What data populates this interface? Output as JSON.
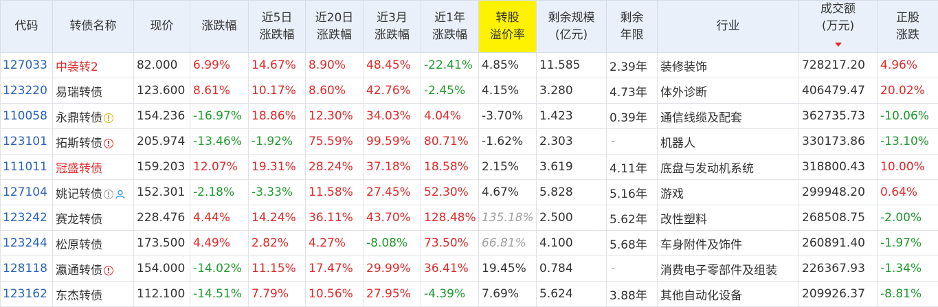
{
  "headers": [
    {
      "lines": [
        "代码"
      ]
    },
    {
      "lines": [
        "转债名称"
      ]
    },
    {
      "lines": [
        "现价"
      ]
    },
    {
      "lines": [
        "涨跌幅"
      ]
    },
    {
      "lines": [
        "近5日",
        "涨跌幅"
      ]
    },
    {
      "lines": [
        "近20日",
        "涨跌幅"
      ]
    },
    {
      "lines": [
        "近3月",
        "涨跌幅"
      ]
    },
    {
      "lines": [
        "近1年",
        "涨跌幅"
      ]
    },
    {
      "lines": [
        "转股",
        "溢价率"
      ]
    },
    {
      "lines": [
        "剩余规模",
        "(亿元)"
      ]
    },
    {
      "lines": [
        "剩余",
        "年限"
      ]
    },
    {
      "lines": [
        "行业"
      ]
    },
    {
      "lines": [
        "成交额",
        "(万元)"
      ]
    },
    {
      "lines": [
        "正股",
        "涨跌"
      ]
    }
  ],
  "rows": [
    {
      "code": "127033",
      "name": "中装转2",
      "price": "82.000",
      "chg": "6.99%",
      "chg5": "14.67%",
      "chg20": "8.90%",
      "chg3m": "48.45%",
      "chg1y": "-22.41%",
      "premium": "4.85%",
      "scale": "11.585",
      "years": "2.39年",
      "industry": "装修装饰",
      "turnover": "728217.20",
      "stock_chg": "4.96%"
    },
    {
      "code": "123220",
      "name": "易瑞转债",
      "price": "123.600",
      "chg": "8.61%",
      "chg5": "10.17%",
      "chg20": "8.60%",
      "chg3m": "42.76%",
      "chg1y": "-2.45%",
      "premium": "4.15%",
      "scale": "3.280",
      "years": "4.73年",
      "industry": "体外诊断",
      "turnover": "406479.47",
      "stock_chg": "20.02%"
    },
    {
      "code": "110058",
      "name": "永鼎转债",
      "price": "154.236",
      "chg": "-16.97%",
      "chg5": "18.86%",
      "chg20": "12.30%",
      "chg3m": "34.03%",
      "chg1y": "4.04%",
      "premium": "-3.70%",
      "scale": "1.423",
      "years": "0.39年",
      "industry": "通信线缆及配套",
      "turnover": "362735.73",
      "stock_chg": "-10.06%"
    },
    {
      "code": "123101",
      "name": "拓斯转债",
      "price": "205.974",
      "chg": "-13.46%",
      "chg5": "-1.92%",
      "chg20": "75.59%",
      "chg3m": "99.59%",
      "chg1y": "80.71%",
      "premium": "-1.62%",
      "scale": "2.303",
      "years": "-",
      "industry": "机器人",
      "turnover": "330173.86",
      "stock_chg": "-13.10%"
    },
    {
      "code": "111011",
      "name": "冠盛转债",
      "price": "159.203",
      "chg": "12.07%",
      "chg5": "19.31%",
      "chg20": "28.24%",
      "chg3m": "37.18%",
      "chg1y": "18.58%",
      "premium": "2.15%",
      "scale": "3.619",
      "years": "4.11年",
      "industry": "底盘与发动机系统",
      "turnover": "318800.43",
      "stock_chg": "10.00%"
    },
    {
      "code": "127104",
      "name": "姚记转债",
      "price": "152.301",
      "chg": "-2.18%",
      "chg5": "-3.33%",
      "chg20": "11.58%",
      "chg3m": "27.45%",
      "chg1y": "52.30%",
      "premium": "4.67%",
      "scale": "5.828",
      "years": "5.16年",
      "industry": "游戏",
      "turnover": "299948.20",
      "stock_chg": "0.64%"
    },
    {
      "code": "123242",
      "name": "赛龙转债",
      "price": "228.476",
      "chg": "4.44%",
      "chg5": "14.24%",
      "chg20": "36.11%",
      "chg3m": "43.70%",
      "chg1y": "128.48%",
      "premium": "135.18%",
      "scale": "2.500",
      "years": "5.62年",
      "industry": "改性塑料",
      "turnover": "268508.75",
      "stock_chg": "-2.00%"
    },
    {
      "code": "123244",
      "name": "松原转债",
      "price": "173.500",
      "chg": "4.49%",
      "chg5": "2.82%",
      "chg20": "4.27%",
      "chg3m": "-8.08%",
      "chg1y": "73.50%",
      "premium": "66.81%",
      "scale": "4.100",
      "years": "5.68年",
      "industry": "车身附件及饰件",
      "turnover": "260891.40",
      "stock_chg": "-1.97%"
    },
    {
      "code": "128118",
      "name": "瀛通转债",
      "price": "154.000",
      "chg": "-14.02%",
      "chg5": "11.15%",
      "chg20": "17.47%",
      "chg3m": "29.99%",
      "chg1y": "36.41%",
      "premium": "19.45%",
      "scale": "0.784",
      "years": "-",
      "industry": "消费电子零部件及组装",
      "turnover": "226367.93",
      "stock_chg": "-1.34%"
    },
    {
      "code": "123162",
      "name": "东杰转债",
      "price": "112.100",
      "chg": "-14.51%",
      "chg5": "7.79%",
      "chg20": "10.56%",
      "chg3m": "27.95%",
      "chg1y": "-4.39%",
      "premium": "7.69%",
      "scale": "5.624",
      "years": "3.88年",
      "industry": "其他自动化设备",
      "turnover": "209926.37",
      "stock_chg": "-8.81%"
    }
  ]
}
